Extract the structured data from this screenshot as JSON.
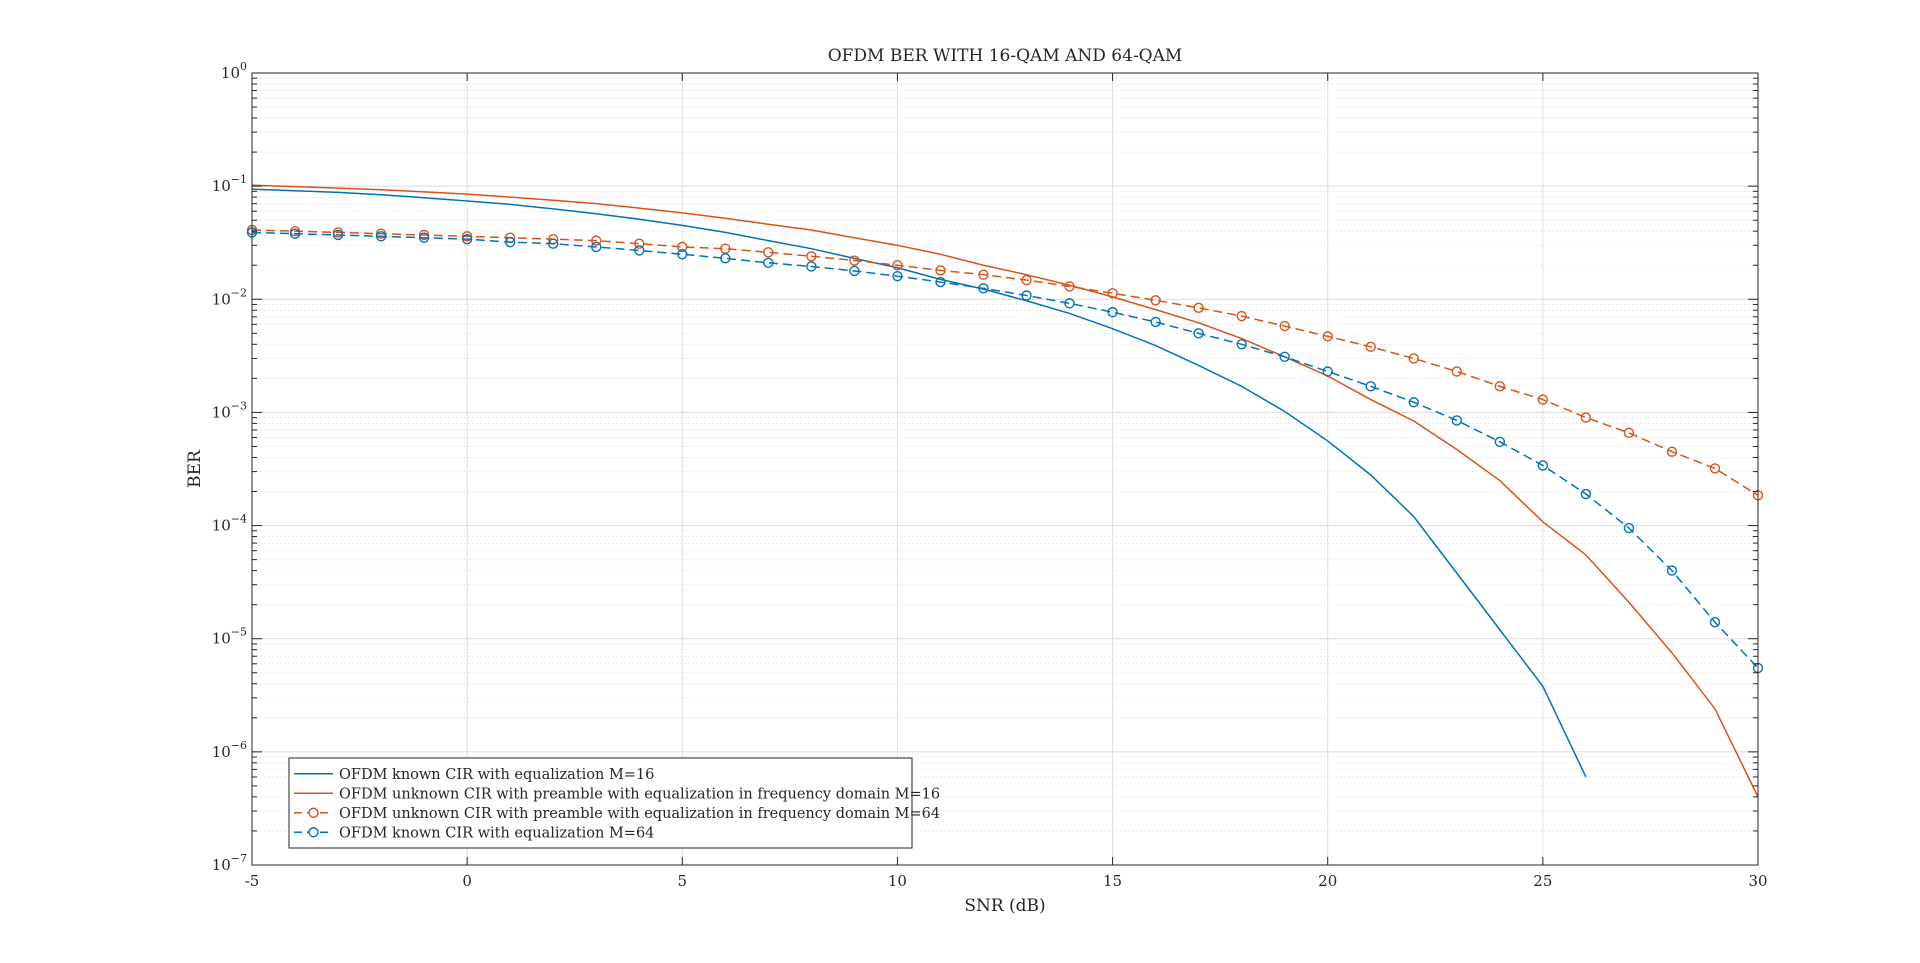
{
  "chart_data": {
    "type": "line",
    "title": "OFDM BER WITH 16-QAM AND 64-QAM",
    "xlabel": "SNR (dB)",
    "ylabel": "BER",
    "xlim": [
      -5,
      30
    ],
    "ylim": [
      1e-07,
      1
    ],
    "yscale": "log",
    "grid": true,
    "legend_position": "bottom-left",
    "xticks": [
      -5,
      0,
      5,
      10,
      15,
      20,
      25,
      30
    ],
    "xtick_labels": [
      "-5",
      "0",
      "5",
      "10",
      "15",
      "20",
      "25",
      "30"
    ],
    "yticks": [
      {
        "value": 1,
        "base": "10",
        "exp": "0"
      },
      {
        "value": 0.1,
        "base": "10",
        "exp": "−1"
      },
      {
        "value": 0.01,
        "base": "10",
        "exp": "−2"
      },
      {
        "value": 0.001,
        "base": "10",
        "exp": "−3"
      },
      {
        "value": 0.0001,
        "base": "10",
        "exp": "−4"
      },
      {
        "value": 1e-05,
        "base": "10",
        "exp": "−5"
      },
      {
        "value": 1e-06,
        "base": "10",
        "exp": "−6"
      },
      {
        "value": 1e-07,
        "base": "10",
        "exp": "−7"
      }
    ],
    "series": [
      {
        "name": "OFDM known CIR with equalization M=16",
        "color": "#0072BD",
        "line_style": "solid",
        "marker": "none",
        "x": [
          -5,
          -4,
          -3,
          -2,
          -1,
          0,
          1,
          2,
          3,
          4,
          5,
          6,
          7,
          8,
          9,
          10,
          11,
          12,
          13,
          14,
          15,
          16,
          17,
          18,
          19,
          20,
          21,
          22,
          23,
          24,
          25,
          26
        ],
        "y": [
          0.094,
          0.091,
          0.088,
          0.084,
          0.079,
          0.074,
          0.069,
          0.063,
          0.057,
          0.051,
          0.045,
          0.039,
          0.033,
          0.028,
          0.023,
          0.019,
          0.015,
          0.0123,
          0.0097,
          0.0075,
          0.0055,
          0.0039,
          0.0026,
          0.0017,
          0.00102,
          0.00056,
          0.00028,
          0.00012,
          3.8e-05,
          1.2e-05,
          3.8e-06,
          6e-07
        ]
      },
      {
        "name": "OFDM unknown CIR with preamble with equalization in frequency domain M=16",
        "color": "#D95319",
        "line_style": "solid",
        "marker": "none",
        "x": [
          -5,
          -4,
          -3,
          -2,
          -1,
          0,
          1,
          2,
          3,
          4,
          5,
          6,
          7,
          8,
          9,
          10,
          11,
          12,
          13,
          14,
          15,
          16,
          17,
          18,
          19,
          20,
          21,
          22,
          23,
          24,
          25,
          26,
          27,
          28,
          29,
          30
        ],
        "y": [
          0.102,
          0.099,
          0.096,
          0.093,
          0.089,
          0.085,
          0.08,
          0.075,
          0.07,
          0.064,
          0.058,
          0.052,
          0.046,
          0.041,
          0.035,
          0.03,
          0.025,
          0.02,
          0.0165,
          0.0133,
          0.0105,
          0.0081,
          0.0062,
          0.0045,
          0.0031,
          0.0021,
          0.0013,
          0.00084,
          0.00047,
          0.00025,
          0.000108,
          5.5e-05,
          2.1e-05,
          7.5e-06,
          2.4e-06,
          4e-07
        ]
      },
      {
        "name": "OFDM unknown CIR with preamble with equalization in frequency domain M=64",
        "color": "#D95319",
        "line_style": "dashed",
        "marker": "circle",
        "x": [
          -5,
          -4,
          -3,
          -2,
          -1,
          0,
          1,
          2,
          3,
          4,
          5,
          6,
          7,
          8,
          9,
          10,
          11,
          12,
          13,
          14,
          15,
          16,
          17,
          18,
          19,
          20,
          21,
          22,
          23,
          24,
          25,
          26,
          27,
          28,
          29,
          30
        ],
        "y": [
          0.041,
          0.04,
          0.039,
          0.038,
          0.037,
          0.036,
          0.035,
          0.034,
          0.033,
          0.031,
          0.029,
          0.028,
          0.026,
          0.024,
          0.022,
          0.02,
          0.018,
          0.0165,
          0.0148,
          0.013,
          0.0113,
          0.0098,
          0.0084,
          0.0071,
          0.0058,
          0.0047,
          0.0038,
          0.003,
          0.0023,
          0.0017,
          0.0013,
          0.0009,
          0.00066,
          0.00045,
          0.00032,
          0.000185
        ]
      },
      {
        "name": "OFDM known CIR with equalization M=64",
        "color": "#0072BD",
        "line_style": "dashed",
        "marker": "circle",
        "x": [
          -5,
          -4,
          -3,
          -2,
          -1,
          0,
          1,
          2,
          3,
          4,
          5,
          6,
          7,
          8,
          9,
          10,
          11,
          12,
          13,
          14,
          15,
          16,
          17,
          18,
          19,
          20,
          21,
          22,
          23,
          24,
          25,
          26,
          27,
          28,
          29,
          30
        ],
        "y": [
          0.039,
          0.038,
          0.037,
          0.036,
          0.035,
          0.034,
          0.032,
          0.031,
          0.029,
          0.027,
          0.025,
          0.023,
          0.021,
          0.0195,
          0.0178,
          0.016,
          0.0142,
          0.0125,
          0.0108,
          0.0092,
          0.0077,
          0.0063,
          0.005,
          0.004,
          0.0031,
          0.0023,
          0.0017,
          0.00123,
          0.00085,
          0.00055,
          0.00034,
          0.00019,
          9.5e-05,
          4e-05,
          1.4e-05,
          5.5e-06
        ]
      }
    ]
  }
}
